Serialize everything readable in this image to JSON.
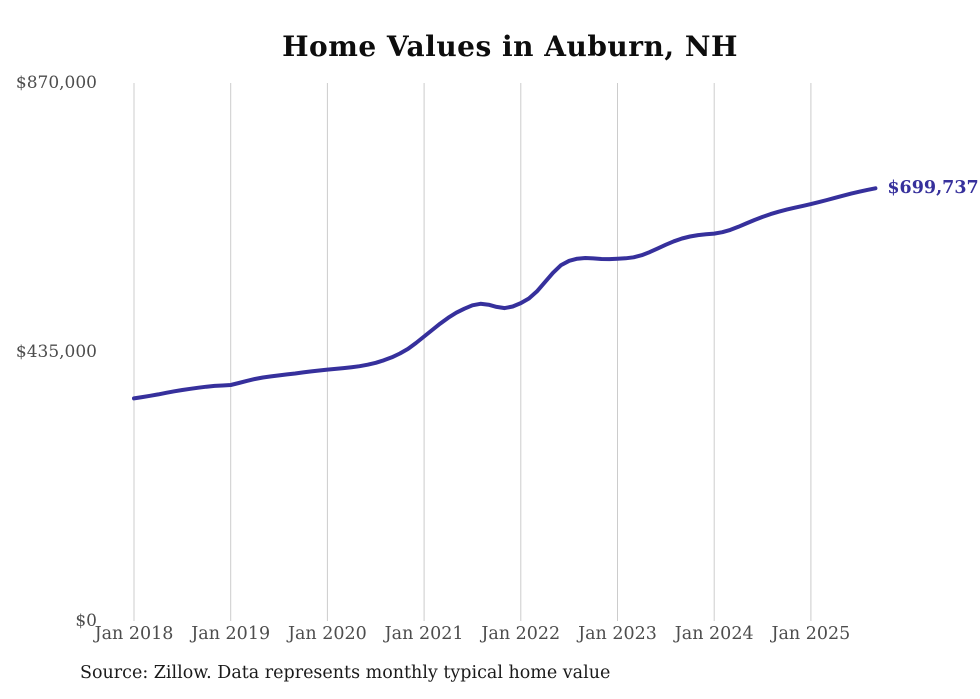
{
  "chart_data": {
    "type": "line",
    "title": "Home Values in Auburn, NH",
    "source_note": "Source: Zillow. Data represents monthly typical home value",
    "end_label": "$699,737",
    "end_value": 699737,
    "line_color": "#36309c",
    "grid_color": "#cccccc",
    "tick_label_color": "#4d4d4d",
    "ylim": [
      0,
      870000
    ],
    "grid": "vertical-only",
    "legend": "none",
    "y_ticks": [
      {
        "label": "$870,000",
        "value": 870000
      },
      {
        "label": "$435,000",
        "value": 435000
      },
      {
        "label": "$0",
        "value": 0
      }
    ],
    "x_ticks": [
      "Jan 2018",
      "Jan 2019",
      "Jan 2020",
      "Jan 2021",
      "Jan 2022",
      "Jan 2023",
      "Jan 2024",
      "Jan 2025"
    ],
    "x_range": {
      "start": "2018-01",
      "end": "2025-09",
      "frequency": "monthly"
    },
    "series": [
      {
        "name": "Typical home value",
        "values": [
          360000,
          362000,
          364200,
          366500,
          369000,
          371500,
          373600,
          375500,
          377300,
          378900,
          380100,
          380900,
          381600,
          384800,
          388300,
          391400,
          393700,
          395600,
          397200,
          398700,
          400300,
          402000,
          403600,
          405100,
          406500,
          407600,
          408900,
          410400,
          412100,
          414400,
          417500,
          421500,
          426500,
          432500,
          440000,
          449500,
          460000,
          470500,
          481000,
          490500,
          498500,
          505000,
          510500,
          513000,
          511500,
          508000,
          506000,
          508500,
          514000,
          521500,
          533000,
          548000,
          563000,
          575500,
          582500,
          585800,
          587000,
          586300,
          585400,
          585200,
          585800,
          586500,
          588200,
          591500,
          596500,
          602500,
          608500,
          614000,
          618500,
          621800,
          624000,
          625300,
          626400,
          628800,
          632500,
          637500,
          643000,
          648500,
          653500,
          658000,
          661800,
          665200,
          668300,
          671200,
          674200,
          677400,
          680800,
          684300,
          687800,
          691200,
          694300,
          697200,
          699737
        ]
      }
    ]
  }
}
